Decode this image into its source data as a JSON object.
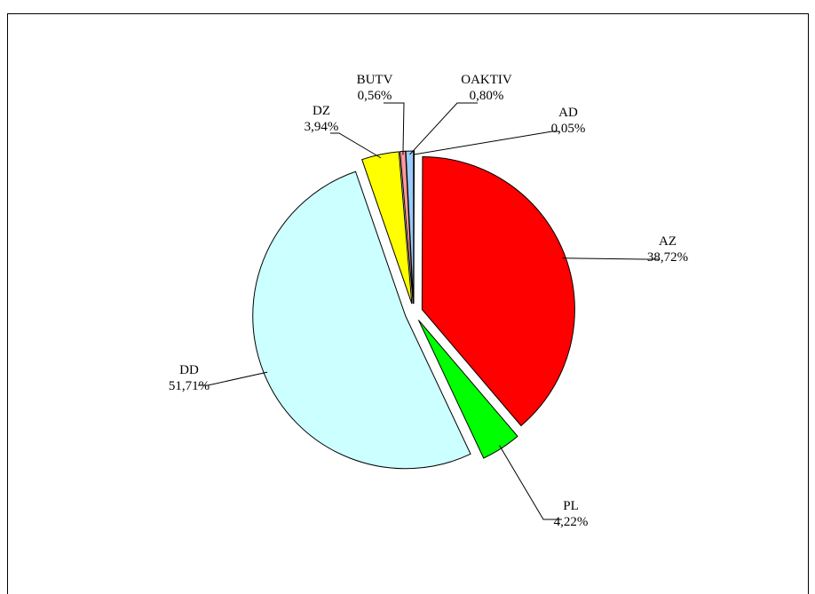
{
  "chart_data": {
    "type": "pie",
    "categories": [
      "AD",
      "AZ",
      "PL",
      "DD",
      "DZ",
      "BUTV",
      "OAKTIV"
    ],
    "values": [
      0.05,
      38.72,
      4.22,
      51.71,
      3.94,
      0.56,
      0.8
    ],
    "value_labels": [
      "0,05%",
      "38,72%",
      "4,22%",
      "51,71%",
      "3,94%",
      "0,56%",
      "0,80%"
    ],
    "colors": [
      "#9999ff",
      "#ff0000",
      "#00ff00",
      "#ccffff",
      "#ffff00",
      "#ff9999",
      "#99ccff"
    ]
  }
}
